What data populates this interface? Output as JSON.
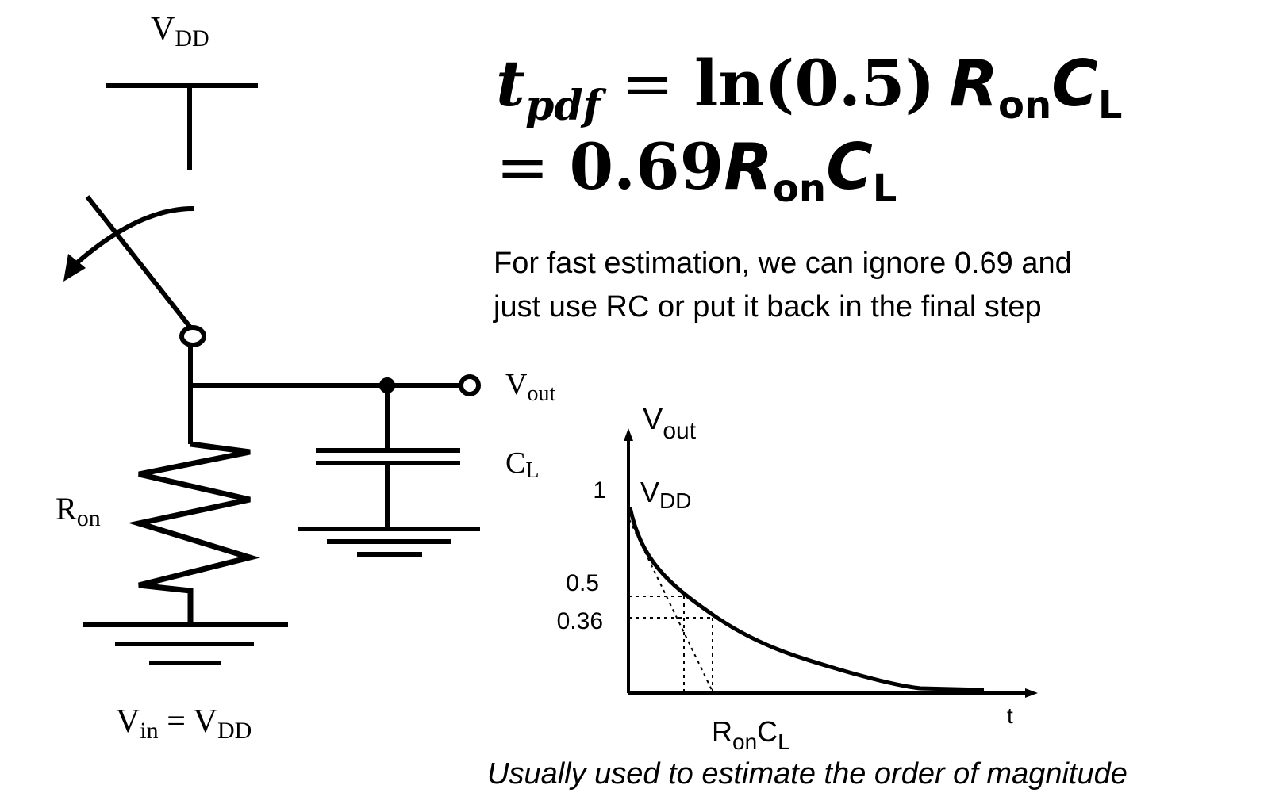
{
  "circuit": {
    "vdd_label": "V",
    "vdd_sub": "DD",
    "vout_label": "V",
    "vout_sub": "out",
    "cl_label": "C",
    "cl_sub": "L",
    "ron_label": "R",
    "ron_sub": "on",
    "vin_label": "V",
    "vin_sub": "in",
    "vin_eq": " = V",
    "vin_eq_sub": "DD"
  },
  "equation": {
    "line1_t": "t",
    "line1_t_sub": "pdf",
    "line1_eq": " = ",
    "line1_ln": "ln(0.5)",
    "line2_eq": "= ",
    "line2_coef": "0.69",
    "r": "R",
    "r_sub": "on",
    "c": "C",
    "c_sub": "L"
  },
  "note": {
    "line1": "For fast estimation, we can ignore 0.69 and",
    "line2": "just use RC or put it back in the final step"
  },
  "plot": {
    "y_axis_label": "V",
    "y_axis_sub": "out",
    "x_axis_label": "t",
    "vdd_label": "V",
    "vdd_sub": "DD",
    "tick_1": "1",
    "tick_05": "0.5",
    "tick_036": "0.36",
    "rc_label": "R",
    "rc_sub1": "on",
    "rc_label2": "C",
    "rc_sub2": "L"
  },
  "caption": "Usually used to estimate the order of magnitude"
}
